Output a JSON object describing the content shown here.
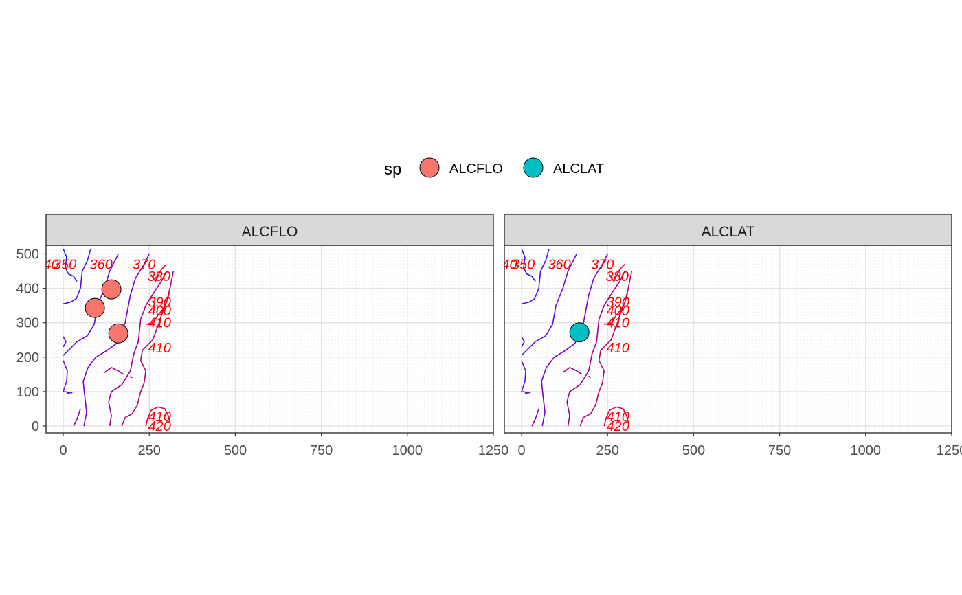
{
  "chart_data": {
    "type": "scatter",
    "facet_by": "sp",
    "xlim": [
      -50,
      1250
    ],
    "ylim": [
      -20,
      525
    ],
    "x_ticks": [
      0,
      250,
      500,
      750,
      1000,
      1250
    ],
    "x_tick_labels": [
      "0",
      "250",
      "500",
      "750",
      "1000",
      "1250"
    ],
    "y_ticks": [
      0,
      100,
      200,
      300,
      400,
      500
    ],
    "y_tick_labels": [
      "0",
      "100",
      "200",
      "300",
      "400",
      "500"
    ],
    "grid": true,
    "legend": {
      "title": "sp",
      "placement": "top",
      "entries": [
        {
          "label": "ALCFLO",
          "color": "#F8766D"
        },
        {
          "label": "ALCLAT",
          "color": "#00BFC4"
        }
      ]
    },
    "panels": [
      {
        "strip": "ALCFLO",
        "points": [
          {
            "x": 140,
            "y": 397
          },
          {
            "x": 92,
            "y": 343
          },
          {
            "x": 160,
            "y": 269
          }
        ]
      },
      {
        "strip": "ALCLAT",
        "points": [
          {
            "x": 168,
            "y": 272
          }
        ]
      }
    ],
    "contour_labels": [
      {
        "text": "40",
        "x": -35,
        "y": 470
      },
      {
        "text": "350",
        "x": 5,
        "y": 470
      },
      {
        "text": "360",
        "x": 110,
        "y": 470
      },
      {
        "text": "370",
        "x": 235,
        "y": 470
      },
      {
        "text": "380",
        "x": 278,
        "y": 435
      },
      {
        "text": "390",
        "x": 280,
        "y": 360
      },
      {
        "text": "400",
        "x": 280,
        "y": 335
      },
      {
        "text": "410",
        "x": 280,
        "y": 300
      },
      {
        "text": "410",
        "x": 280,
        "y": 228
      },
      {
        "text": "410",
        "x": 280,
        "y": 28
      },
      {
        "text": "420",
        "x": 280,
        "y": 0
      }
    ],
    "contours": [
      {
        "color": "#2020e0",
        "points": [
          [
            0,
            515
          ],
          [
            10,
            490
          ],
          [
            6,
            460
          ],
          [
            15,
            442
          ],
          [
            30,
            435
          ],
          [
            40,
            420
          ]
        ]
      },
      {
        "color": "#5510e8",
        "points": [
          [
            0,
            355
          ],
          [
            22,
            360
          ],
          [
            38,
            370
          ],
          [
            50,
            400
          ],
          [
            55,
            450
          ],
          [
            70,
            480
          ],
          [
            80,
            515
          ]
        ]
      },
      {
        "color": "#5510e8",
        "points": [
          [
            0,
            260
          ],
          [
            8,
            245
          ],
          [
            0,
            230
          ]
        ]
      },
      {
        "color": "#6010e0",
        "points": [
          [
            0,
            205
          ],
          [
            15,
            220
          ],
          [
            40,
            245
          ],
          [
            70,
            262
          ],
          [
            90,
            295
          ],
          [
            100,
            350
          ],
          [
            120,
            400
          ],
          [
            135,
            450
          ],
          [
            150,
            480
          ],
          [
            160,
            500
          ]
        ]
      },
      {
        "color": "#6010e0",
        "points": [
          [
            0,
            190
          ],
          [
            12,
            160
          ],
          [
            10,
            130
          ],
          [
            0,
            100
          ],
          [
            25,
            97
          ],
          [
            10,
            95
          ]
        ]
      },
      {
        "color": "#7a00c8",
        "points": [
          [
            60,
            0
          ],
          [
            68,
            40
          ],
          [
            62,
            90
          ],
          [
            58,
            130
          ],
          [
            72,
            170
          ],
          [
            95,
            200
          ],
          [
            125,
            218
          ],
          [
            155,
            240
          ],
          [
            180,
            300
          ],
          [
            195,
            380
          ],
          [
            210,
            430
          ],
          [
            235,
            470
          ],
          [
            250,
            500
          ]
        ]
      },
      {
        "color": "#9000b0",
        "points": [
          [
            30,
            0
          ],
          [
            40,
            20
          ],
          [
            50,
            50
          ]
        ]
      },
      {
        "color": "#a00090",
        "points": [
          [
            135,
            0
          ],
          [
            140,
            30
          ],
          [
            132,
            70
          ],
          [
            140,
            100
          ],
          [
            170,
            120
          ],
          [
            195,
            160
          ],
          [
            205,
            210
          ],
          [
            218,
            245
          ],
          [
            225,
            310
          ],
          [
            240,
            350
          ],
          [
            265,
            390
          ],
          [
            285,
            420
          ],
          [
            300,
            450
          ]
        ]
      },
      {
        "color": "#a00090",
        "points": [
          [
            120,
            155
          ],
          [
            140,
            170
          ],
          [
            160,
            160
          ],
          [
            175,
            150
          ]
        ]
      },
      {
        "color": "#b80070",
        "points": [
          [
            170,
            0
          ],
          [
            180,
            25
          ],
          [
            200,
            35
          ],
          [
            215,
            60
          ],
          [
            225,
            100
          ],
          [
            235,
            125
          ],
          [
            240,
            160
          ],
          [
            225,
            190
          ],
          [
            230,
            220
          ],
          [
            260,
            250
          ],
          [
            275,
            290
          ],
          [
            285,
            320
          ],
          [
            300,
            360
          ],
          [
            310,
            400
          ],
          [
            320,
            450
          ]
        ]
      },
      {
        "color": "#b80070",
        "points": [
          [
            195,
            145
          ],
          [
            200,
            140
          ]
        ]
      },
      {
        "color": "#e0004a",
        "points": [
          [
            240,
            0
          ],
          [
            245,
            20
          ],
          [
            255,
            45
          ],
          [
            275,
            55
          ],
          [
            295,
            50
          ],
          [
            305,
            30
          ],
          [
            310,
            10
          ]
        ]
      },
      {
        "color": "#e0004a",
        "points": [
          [
            255,
            440
          ],
          [
            268,
            420
          ],
          [
            285,
            455
          ],
          [
            300,
            470
          ]
        ]
      },
      {
        "color": "#f00030",
        "points": [
          [
            240,
            295
          ],
          [
            262,
            300
          ],
          [
            275,
            322
          ],
          [
            290,
            340
          ],
          [
            300,
            360
          ],
          [
            308,
            385
          ]
        ]
      }
    ]
  }
}
